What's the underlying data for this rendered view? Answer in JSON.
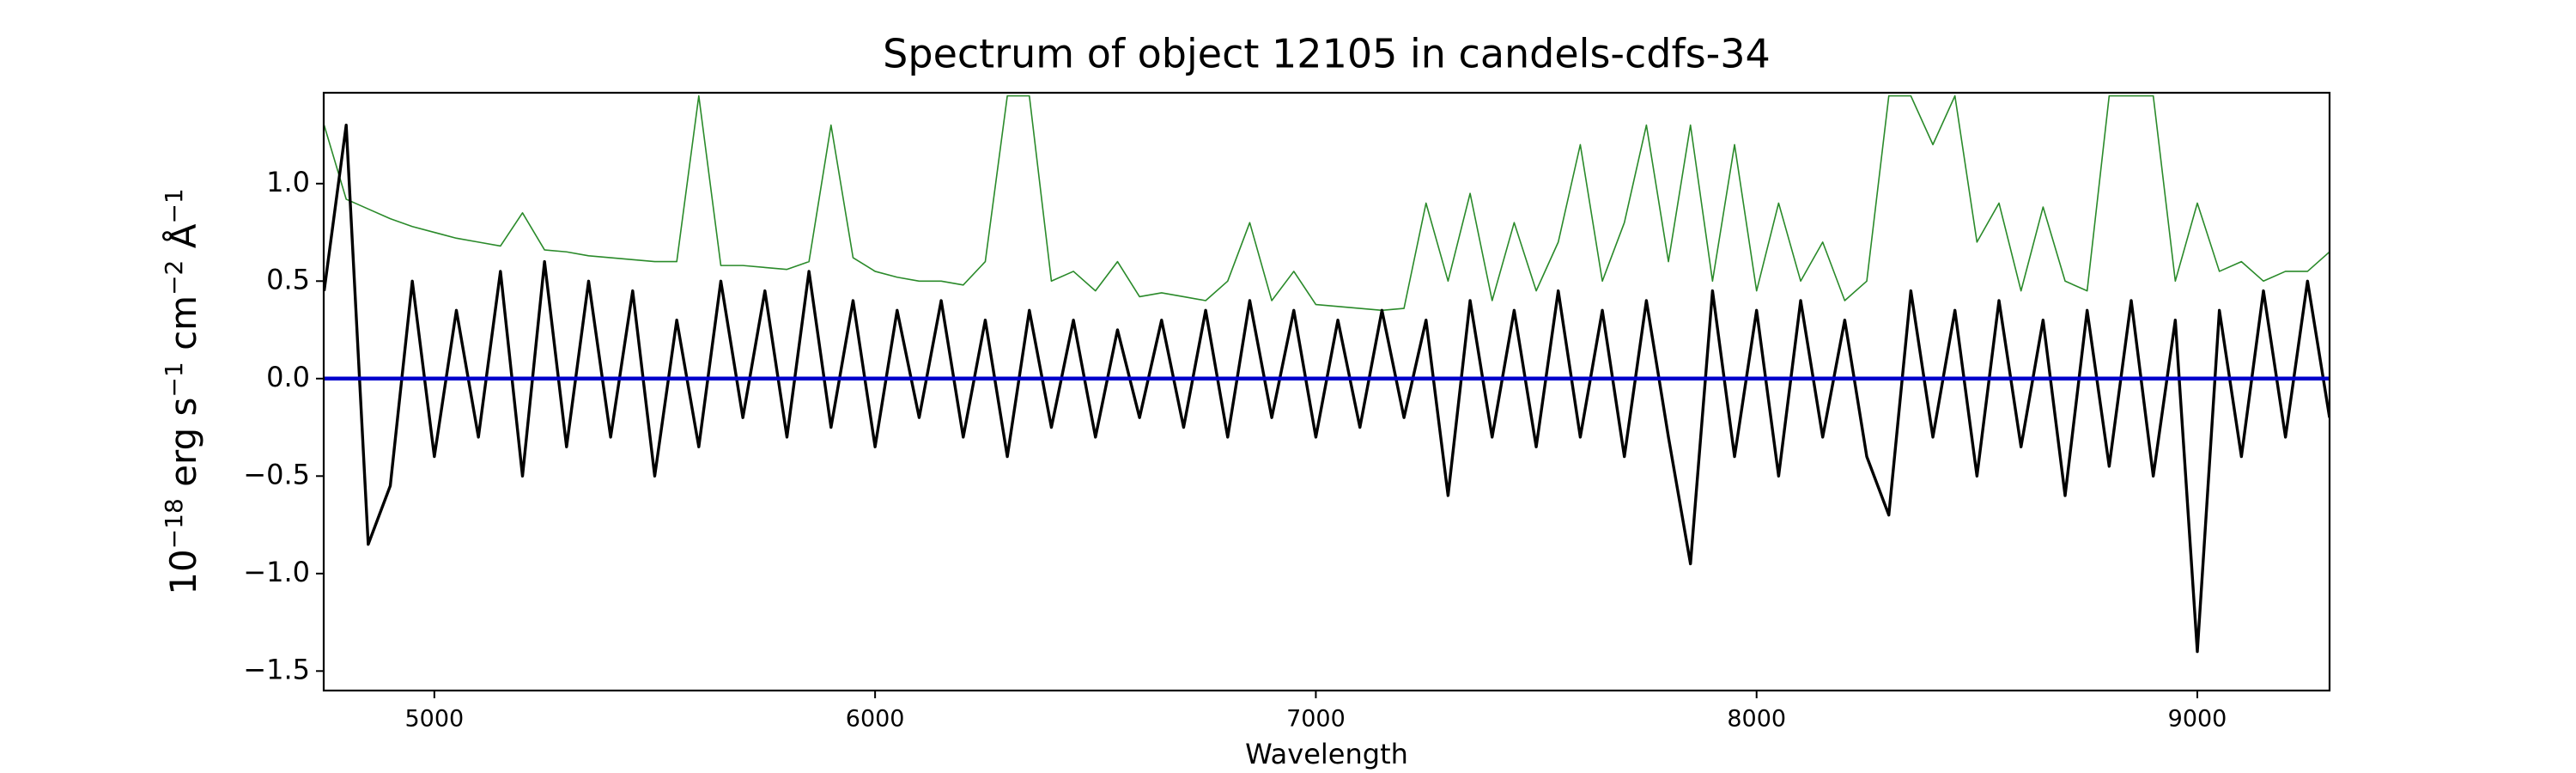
{
  "chart_data": {
    "type": "line",
    "title": "Spectrum of object 12105 in candels-cdfs-34",
    "xlabel": "Wavelength",
    "ylabel": [
      "10",
      "−18",
      " erg s",
      "−1",
      " cm",
      "−2",
      " Å",
      "−1"
    ],
    "xlim": [
      4749,
      9300
    ],
    "ylim": [
      -1.6,
      1.466
    ],
    "xticks": [
      5000,
      6000,
      7000,
      8000,
      9000
    ],
    "yticks": [
      {
        "value": -1.5,
        "label": "−1.5"
      },
      {
        "value": -1.0,
        "label": "−1.0"
      },
      {
        "value": -0.5,
        "label": "−0.5"
      },
      {
        "value": 0,
        "label": "0.0"
      },
      {
        "value": 0.5,
        "label": "0.5"
      },
      {
        "value": 1.0,
        "label": "1.0"
      }
    ],
    "x": [
      4750,
      4800,
      4850,
      4900,
      4950,
      5000,
      5050,
      5100,
      5150,
      5200,
      5250,
      5300,
      5350,
      5400,
      5450,
      5500,
      5550,
      5600,
      5650,
      5700,
      5750,
      5800,
      5850,
      5900,
      5950,
      6000,
      6050,
      6100,
      6150,
      6200,
      6250,
      6300,
      6350,
      6400,
      6450,
      6500,
      6550,
      6600,
      6650,
      6700,
      6750,
      6800,
      6850,
      6900,
      6950,
      7000,
      7050,
      7100,
      7150,
      7200,
      7250,
      7300,
      7350,
      7400,
      7450,
      7500,
      7550,
      7600,
      7650,
      7700,
      7750,
      7800,
      7850,
      7900,
      7950,
      8000,
      8050,
      8100,
      8150,
      8200,
      8250,
      8300,
      8350,
      8400,
      8450,
      8500,
      8550,
      8600,
      8650,
      8700,
      8750,
      8800,
      8850,
      8900,
      8950,
      9000,
      9050,
      9100,
      9150,
      9200,
      9250,
      9300
    ],
    "series": [
      {
        "color": "#2a8a2a",
        "width": 1.6,
        "values": [
          1.3,
          0.92,
          0.87,
          0.82,
          0.78,
          0.75,
          0.72,
          0.7,
          0.68,
          0.85,
          0.66,
          0.65,
          0.63,
          0.62,
          0.61,
          0.6,
          0.6,
          1.45,
          0.58,
          0.58,
          0.57,
          0.56,
          0.6,
          1.3,
          0.62,
          0.55,
          0.52,
          0.5,
          0.5,
          0.48,
          0.6,
          1.45,
          1.45,
          0.5,
          0.55,
          0.45,
          0.6,
          0.42,
          0.44,
          0.42,
          0.4,
          0.5,
          0.8,
          0.4,
          0.55,
          0.38,
          0.37,
          0.36,
          0.35,
          0.36,
          0.9,
          0.5,
          0.95,
          0.4,
          0.8,
          0.45,
          0.7,
          1.2,
          0.5,
          0.8,
          1.3,
          0.6,
          1.3,
          0.5,
          1.2,
          0.45,
          0.9,
          0.5,
          0.7,
          0.4,
          0.5,
          1.45,
          1.45,
          1.2,
          1.45,
          0.7,
          0.9,
          0.45,
          0.88,
          0.5,
          0.45,
          1.45,
          1.45,
          1.45,
          0.5,
          0.9,
          0.55,
          0.6,
          0.5,
          0.55,
          0.55,
          0.65
        ]
      },
      {
        "color": "#000000",
        "width": 3.4,
        "values": [
          0.45,
          1.3,
          -0.85,
          -0.55,
          0.5,
          -0.4,
          0.35,
          -0.3,
          0.55,
          -0.5,
          0.6,
          -0.35,
          0.5,
          -0.3,
          0.45,
          -0.5,
          0.3,
          -0.35,
          0.5,
          -0.2,
          0.45,
          -0.3,
          0.55,
          -0.25,
          0.4,
          -0.35,
          0.35,
          -0.2,
          0.4,
          -0.3,
          0.3,
          -0.4,
          0.35,
          -0.25,
          0.3,
          -0.3,
          0.25,
          -0.2,
          0.3,
          -0.25,
          0.35,
          -0.3,
          0.4,
          -0.2,
          0.35,
          -0.3,
          0.3,
          -0.25,
          0.35,
          -0.2,
          0.3,
          -0.6,
          0.4,
          -0.3,
          0.35,
          -0.35,
          0.45,
          -0.3,
          0.35,
          -0.4,
          0.4,
          -0.3,
          -0.95,
          0.45,
          -0.4,
          0.35,
          -0.5,
          0.4,
          -0.3,
          0.3,
          -0.4,
          -0.7,
          0.45,
          -0.3,
          0.35,
          -0.5,
          0.4,
          -0.35,
          0.3,
          -0.6,
          0.35,
          -0.45,
          0.4,
          -0.5,
          0.3,
          -1.4,
          0.35,
          -0.4,
          0.45,
          -0.3,
          0.5,
          -0.2
        ]
      },
      {
        "color": "#0000cc",
        "width": 4.5,
        "values": [
          0,
          0,
          0,
          0,
          0,
          0,
          0,
          0,
          0,
          0,
          0,
          0,
          0,
          0,
          0,
          0,
          0,
          0,
          0,
          0,
          0,
          0,
          0,
          0,
          0,
          0,
          0,
          0,
          0,
          0,
          0,
          0,
          0,
          0,
          0,
          0,
          0,
          0,
          0,
          0,
          0,
          0,
          0,
          0,
          0,
          0,
          0,
          0,
          0,
          0,
          0,
          0,
          0,
          0,
          0,
          0,
          0,
          0,
          0,
          0,
          0,
          0,
          0,
          0,
          0,
          0,
          0,
          0,
          0,
          0,
          0,
          0,
          0,
          0,
          0,
          0,
          0,
          0,
          0,
          0,
          0,
          0,
          0,
          0,
          0,
          0,
          0,
          0,
          0,
          0,
          0,
          0
        ]
      }
    ]
  }
}
